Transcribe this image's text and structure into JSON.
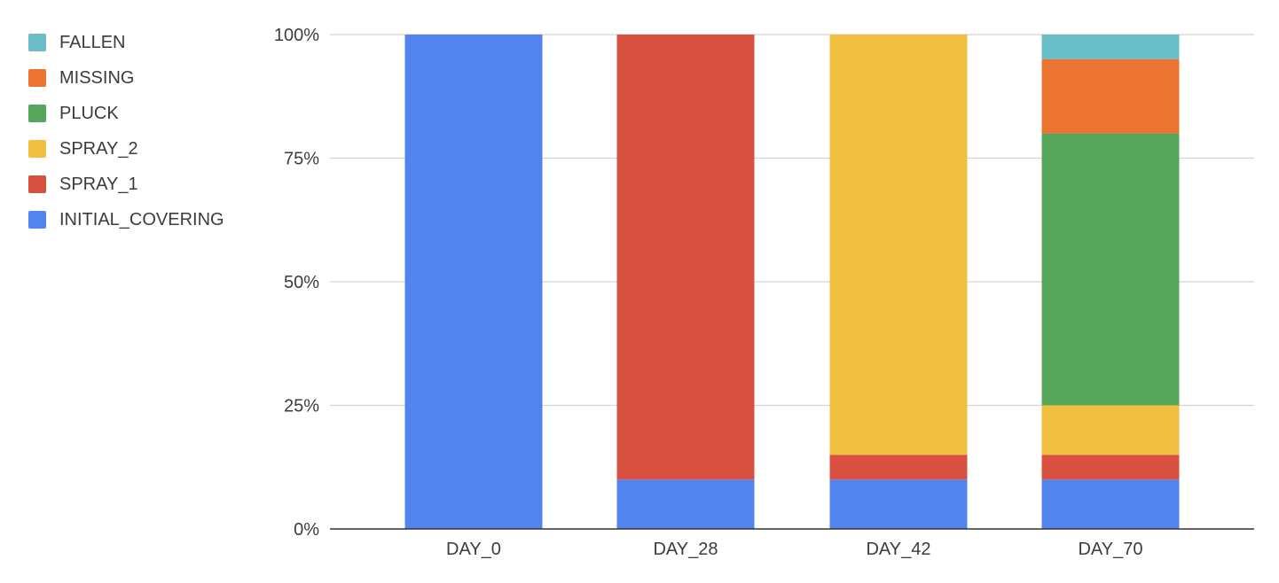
{
  "chart_data": {
    "type": "bar",
    "stacked": true,
    "normalized": true,
    "categories": [
      "DAY_0",
      "DAY_28",
      "DAY_42",
      "DAY_70"
    ],
    "series": [
      {
        "name": "INITIAL_COVERING",
        "color": "#5383EC",
        "values": [
          100,
          10,
          10,
          10
        ]
      },
      {
        "name": "SPRAY_1",
        "color": "#D85140",
        "values": [
          0,
          90,
          5,
          5
        ]
      },
      {
        "name": "SPRAY_2",
        "color": "#F1BF42",
        "values": [
          0,
          0,
          85,
          10
        ]
      },
      {
        "name": "PLUCK",
        "color": "#58A65C",
        "values": [
          0,
          0,
          0,
          55
        ]
      },
      {
        "name": "MISSING",
        "color": "#EB7530",
        "values": [
          0,
          0,
          0,
          15
        ]
      },
      {
        "name": "FALLEN",
        "color": "#68BDC6",
        "values": [
          0,
          0,
          0,
          5
        ]
      }
    ],
    "yticks": [
      "0%",
      "25%",
      "50%",
      "75%",
      "100%"
    ],
    "ylim": [
      0,
      100
    ],
    "grid": true,
    "legend_position": "left",
    "legend_order": [
      "FALLEN",
      "MISSING",
      "PLUCK",
      "SPRAY_2",
      "SPRAY_1",
      "INITIAL_COVERING"
    ]
  }
}
